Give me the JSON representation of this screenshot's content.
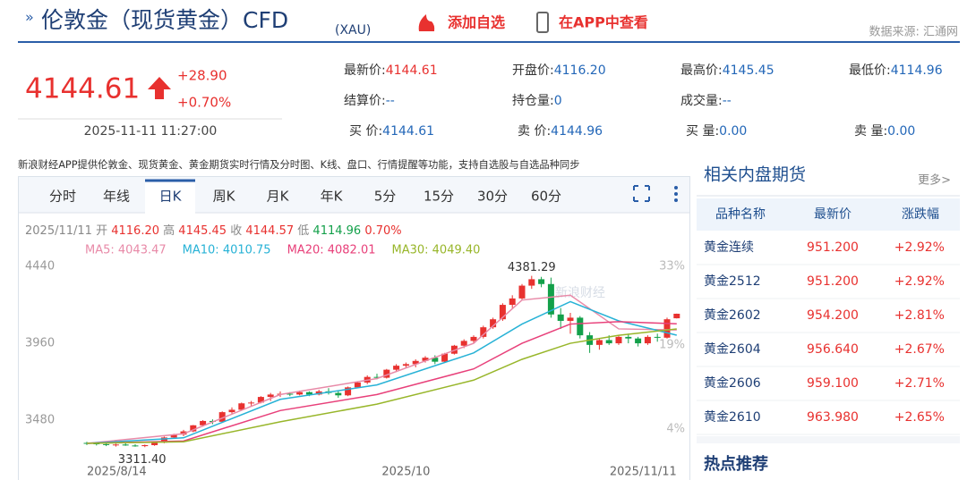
{
  "header": {
    "title": "伦敦金（现货黄金）CFD",
    "subtitle": "(XAU)",
    "add_watch": "添加自选",
    "open_app": "在APP中查看",
    "source": "数据来源: 汇通网"
  },
  "quote": {
    "price": "4144.61",
    "change": "+28.90",
    "change_pct": "+0.70%",
    "time": "2025-11-11 11:27:00",
    "fields": [
      {
        "label": "最新价:",
        "value": "4144.61"
      },
      {
        "label": "开盘价:",
        "value": "4116.20"
      },
      {
        "label": "最高价:",
        "value": "4145.45"
      },
      {
        "label": "最低价:",
        "value": "4114.96"
      },
      {
        "label": "结算价:",
        "value": "--"
      },
      {
        "label": "持仓量:",
        "value": "0"
      },
      {
        "label": "成交量:",
        "value": "--"
      },
      {
        "label": "买  价:",
        "value": "4144.61"
      },
      {
        "label": "卖  价:",
        "value": "4144.96"
      },
      {
        "label": "买  量:",
        "value": "0.00"
      },
      {
        "label": "卖  量:",
        "value": "0.00"
      }
    ]
  },
  "notice": "新浪财经APP提供伦敦金、现货黄金、黄金期货实时行情及分时图、K线、盘口、行情提醒等功能，支持自选股与自选品种同步",
  "tabs": [
    "分时",
    "年线",
    "日K",
    "周K",
    "月K",
    "年K",
    "5分",
    "15分",
    "30分",
    "60分"
  ],
  "chart_data": {
    "type": "candlestick",
    "info": {
      "date": "2025/11/11",
      "open_label": "开",
      "open": "4116.20",
      "high_label": "高",
      "high": "4145.45",
      "close_label": "收",
      "close": "4144.57",
      "low_label": "低",
      "low": "4114.96",
      "pct": "0.70%"
    },
    "watermark": "新浪财经",
    "max_label": "4381.29",
    "min_label": "3311.40",
    "categories": [
      "2025/8/14",
      null,
      null,
      null,
      null,
      null,
      null,
      null,
      null,
      null,
      null,
      null,
      null,
      null,
      null,
      null,
      null,
      null,
      null,
      null,
      null,
      null,
      null,
      null,
      null,
      null,
      null,
      null,
      null,
      null,
      null,
      null,
      null,
      "2025/10",
      null,
      null,
      null,
      null,
      null,
      null,
      null,
      null,
      null,
      null,
      null,
      null,
      null,
      null,
      null,
      null,
      null,
      null,
      null,
      null,
      null,
      null,
      null,
      null,
      null,
      null,
      null,
      "2025/11/11"
    ],
    "candles": [
      [
        3338,
        3345,
        3325,
        3335
      ],
      [
        3335,
        3340,
        3322,
        3330
      ],
      [
        3330,
        3336,
        3318,
        3325
      ],
      [
        3325,
        3334,
        3315,
        3328
      ],
      [
        3328,
        3338,
        3320,
        3322
      ],
      [
        3322,
        3330,
        3314,
        3318
      ],
      [
        3318,
        3328,
        3311.4,
        3324
      ],
      [
        3324,
        3345,
        3320,
        3340
      ],
      [
        3340,
        3378,
        3336,
        3372
      ],
      [
        3372,
        3395,
        3365,
        3390
      ],
      [
        3390,
        3420,
        3380,
        3410
      ],
      [
        3410,
        3450,
        3405,
        3448
      ],
      [
        3448,
        3480,
        3440,
        3475
      ],
      [
        3475,
        3485,
        3455,
        3470
      ],
      [
        3470,
        3535,
        3465,
        3530
      ],
      [
        3530,
        3560,
        3520,
        3545
      ],
      [
        3545,
        3590,
        3540,
        3585
      ],
      [
        3585,
        3600,
        3570,
        3590
      ],
      [
        3590,
        3630,
        3585,
        3625
      ],
      [
        3625,
        3650,
        3600,
        3640
      ],
      [
        3640,
        3660,
        3625,
        3645
      ],
      [
        3645,
        3655,
        3630,
        3640
      ],
      [
        3640,
        3665,
        3635,
        3655
      ],
      [
        3655,
        3660,
        3630,
        3640
      ],
      [
        3640,
        3670,
        3635,
        3660
      ],
      [
        3660,
        3680,
        3640,
        3650
      ],
      [
        3650,
        3665,
        3620,
        3635
      ],
      [
        3635,
        3690,
        3630,
        3685
      ],
      [
        3685,
        3720,
        3680,
        3715
      ],
      [
        3715,
        3760,
        3705,
        3750
      ],
      [
        3750,
        3770,
        3735,
        3745
      ],
      [
        3745,
        3800,
        3740,
        3795
      ],
      [
        3795,
        3830,
        3780,
        3820
      ],
      [
        3820,
        3840,
        3805,
        3830
      ],
      [
        3830,
        3860,
        3810,
        3850
      ],
      [
        3850,
        3880,
        3840,
        3870
      ],
      [
        3870,
        3885,
        3830,
        3845
      ],
      [
        3845,
        3900,
        3840,
        3895
      ],
      [
        3895,
        3950,
        3890,
        3945
      ],
      [
        3945,
        3985,
        3930,
        3975
      ],
      [
        3975,
        4010,
        3960,
        4000
      ],
      [
        4000,
        4070,
        3990,
        4060
      ],
      [
        4060,
        4120,
        4050,
        4110
      ],
      [
        4110,
        4210,
        4100,
        4200
      ],
      [
        4200,
        4260,
        4180,
        4240
      ],
      [
        4240,
        4330,
        4230,
        4320
      ],
      [
        4320,
        4381.29,
        4300,
        4360
      ],
      [
        4360,
        4375,
        4310,
        4330
      ],
      [
        4330,
        4370,
        4120,
        4140
      ],
      [
        4140,
        4180,
        4050,
        4100
      ],
      [
        4100,
        4150,
        4020,
        4120
      ],
      [
        4120,
        4130,
        3990,
        4010
      ],
      [
        4010,
        4030,
        3900,
        3950
      ],
      [
        3950,
        3990,
        3920,
        3980
      ],
      [
        3980,
        4010,
        3950,
        3960
      ],
      [
        3960,
        4010,
        3950,
        4000
      ],
      [
        4000,
        4020,
        3960,
        3990
      ],
      [
        3990,
        4000,
        3940,
        3960
      ],
      [
        3960,
        4010,
        3950,
        4000
      ],
      [
        4000,
        4020,
        3970,
        3995
      ],
      [
        3995,
        4120,
        3990,
        4110
      ],
      [
        4116.2,
        4145.45,
        4114.96,
        4144.57
      ]
    ],
    "up_color": "#e8312f",
    "down_color": "#13a04a",
    "series": [
      {
        "name": "MA5: 4043.47",
        "color": "#e88aa8",
        "x": [
          0,
          10,
          20,
          30,
          40,
          45,
          50,
          55,
          61
        ],
        "values": [
          3335,
          3395,
          3640,
          3740,
          3960,
          4230,
          4260,
          4050,
          4043.47
        ]
      },
      {
        "name": "MA10: 4010.75",
        "color": "#27b2d6",
        "x": [
          0,
          10,
          20,
          30,
          40,
          45,
          50,
          55,
          61
        ],
        "values": [
          3335,
          3370,
          3610,
          3700,
          3900,
          4080,
          4220,
          4100,
          4010.75
        ]
      },
      {
        "name": "MA20: 4082.01",
        "color": "#e8407a",
        "x": [
          0,
          10,
          20,
          30,
          40,
          45,
          50,
          55,
          61
        ],
        "values": [
          3335,
          3350,
          3540,
          3640,
          3800,
          3960,
          4080,
          4095,
          4082.01
        ]
      },
      {
        "name": "MA30: 4049.40",
        "color": "#98b62a",
        "x": [
          0,
          10,
          20,
          30,
          40,
          45,
          50,
          55,
          61
        ],
        "values": [
          3335,
          3345,
          3470,
          3580,
          3730,
          3860,
          3960,
          4010,
          4049.4
        ]
      }
    ],
    "ylim": [
      3285,
      4485
    ],
    "yticks": [
      4440,
      3960,
      3480
    ],
    "y2lim": [
      0,
      34.3
    ],
    "y2ticks": [
      {
        "value": 33,
        "label": "33%"
      },
      {
        "value": 19,
        "label": "19%"
      },
      {
        "value": 4,
        "label": "4%"
      }
    ]
  },
  "side": {
    "title": "相关内盘期货",
    "more": "更多>",
    "columns": [
      "品种名称",
      "最新价",
      "涨跌幅"
    ],
    "rows": [
      [
        "黄金连续",
        "951.200",
        "+2.92%"
      ],
      [
        "黄金2512",
        "951.200",
        "+2.92%"
      ],
      [
        "黄金2602",
        "954.200",
        "+2.81%"
      ],
      [
        "黄金2604",
        "956.640",
        "+2.67%"
      ],
      [
        "黄金2606",
        "959.100",
        "+2.71%"
      ],
      [
        "黄金2610",
        "963.980",
        "+2.65%"
      ]
    ],
    "hot": "热点推荐"
  }
}
